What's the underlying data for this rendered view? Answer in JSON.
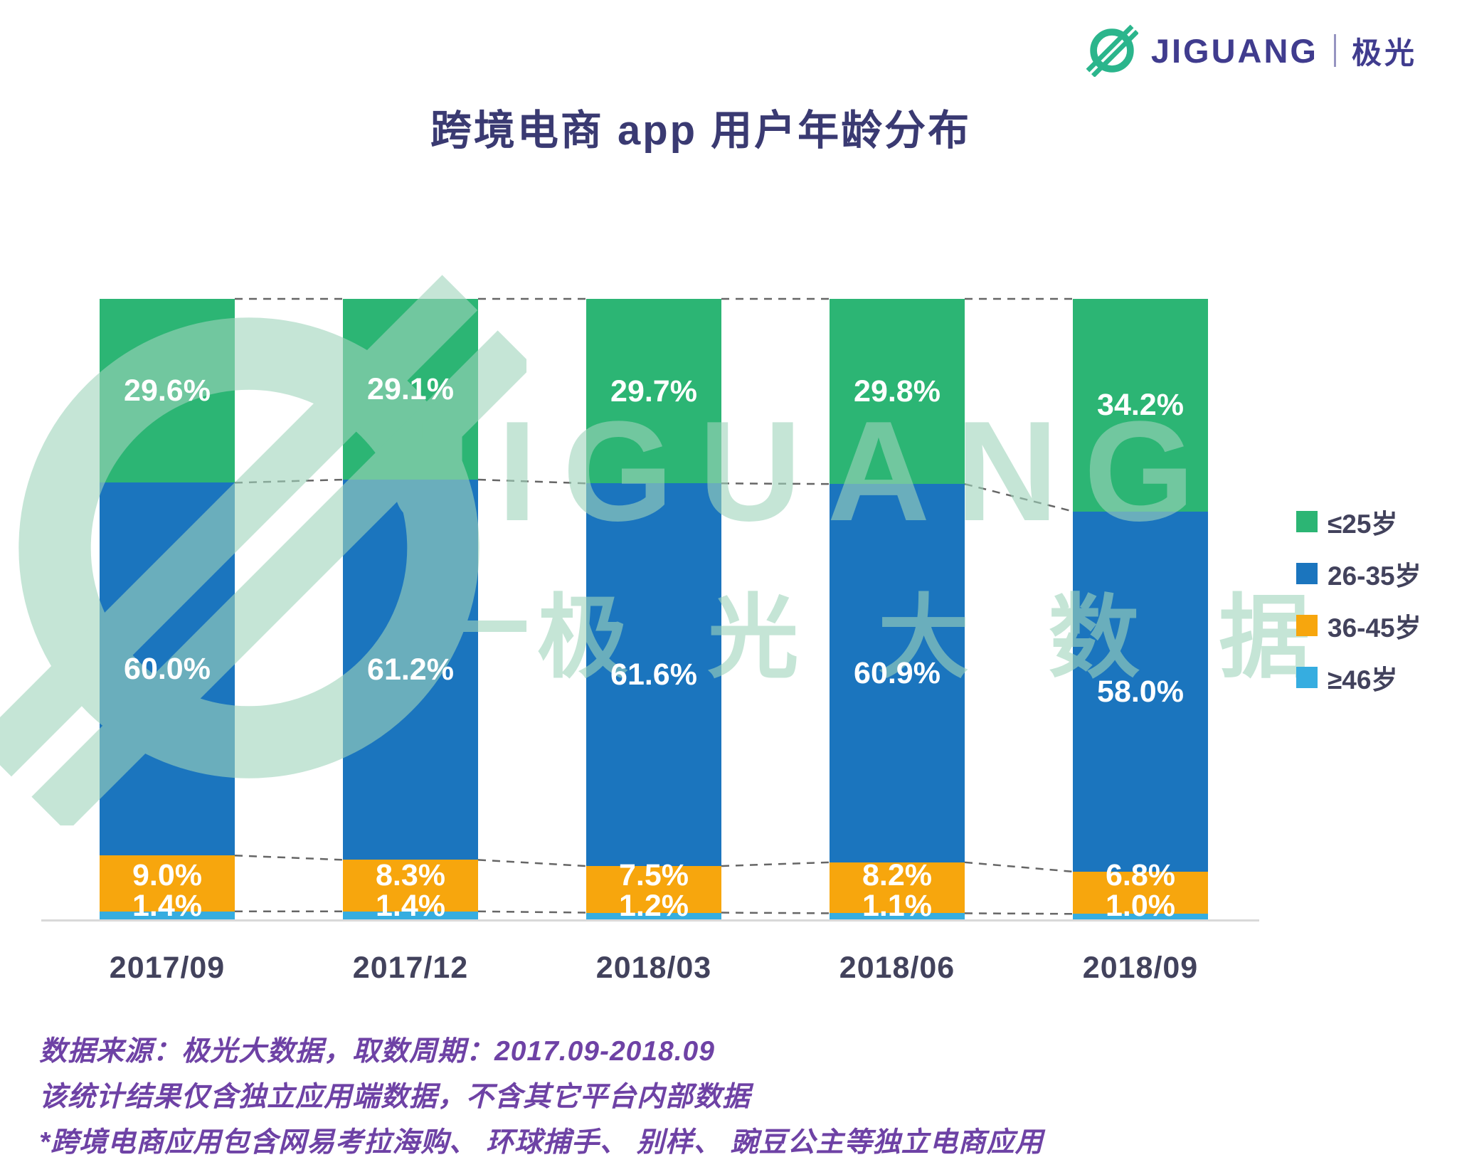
{
  "brand": {
    "name": "JIGUANG",
    "name_cn": "极光"
  },
  "title": "跨境电商 app 用户年龄分布",
  "chart_data": {
    "type": "bar",
    "stacked": true,
    "unit": "%",
    "title": "跨境电商 app 用户年龄分布",
    "xlabel": "",
    "ylabel": "",
    "ylim": [
      0,
      100
    ],
    "grid": false,
    "legend_position": "right",
    "connector_lines": "dashed lines join segment boundaries of adjacent bars",
    "categories": [
      "2017/09",
      "2017/12",
      "2018/03",
      "2018/06",
      "2018/09"
    ],
    "series": [
      {
        "name": "≥46岁",
        "color": "#36ADE0",
        "values": [
          1.4,
          1.4,
          1.2,
          1.1,
          1.0
        ]
      },
      {
        "name": "36-45岁",
        "color": "#F7A60D",
        "values": [
          9.0,
          8.3,
          7.5,
          8.2,
          6.8
        ]
      },
      {
        "name": "26-35岁",
        "color": "#1B75BE",
        "values": [
          60.0,
          61.2,
          61.6,
          60.9,
          58.0
        ]
      },
      {
        "name": "≤25岁",
        "color": "#2CB574",
        "values": [
          29.6,
          29.1,
          29.7,
          29.8,
          34.2
        ]
      }
    ]
  },
  "watermark": {
    "line1": "JIGUANG",
    "line2": "极 光 大 数 据"
  },
  "footer": {
    "lines": [
      "数据来源：极光大数据，取数周期：2017.09-2018.09",
      "该统计结果仅含独立应用端数据，不含其它平台内部数据",
      "*跨境电商应用包含网易考拉海购、 环球捕手、 别样、 豌豆公主等独立电商应用"
    ]
  },
  "colors": {
    "title": "#3A3A72",
    "brand": "#403C8E",
    "icon": "#2BB58C",
    "footer": "#6E42A5",
    "category": "#42425C",
    "axis": "#D9D9D9",
    "connector": "#666666",
    "watermark": "#9FD4BC"
  }
}
